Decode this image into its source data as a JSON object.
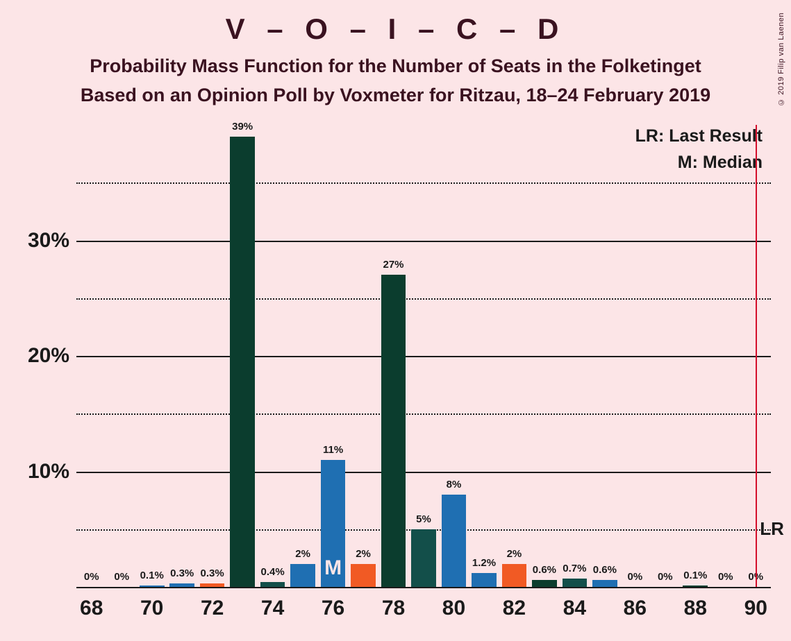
{
  "title_main": "V – O – I – C – D",
  "subtitle1": "Probability Mass Function for the Number of Seats in the Folketinget",
  "subtitle2": "Based on an Opinion Poll by Voxmeter for Ritzau, 18–24 February 2019",
  "copyright": "© 2019 Filip van Laenen",
  "legend_lr": "LR: Last Result",
  "legend_m": "M: Median",
  "lr_marker": "LR",
  "median_marker": "M",
  "chart": {
    "type": "bar",
    "background_color": "#fce5e7",
    "text_color": "#3a1220",
    "axis_color": "#1a1a1a",
    "lr_line_color": "#d40f2c",
    "colors": {
      "dark_green": "#0b3d2e",
      "teal": "#134f4a",
      "blue": "#1f6fb2",
      "orange": "#f15a24"
    },
    "x_min": 67.5,
    "x_max": 90.5,
    "x_ticks": [
      68,
      70,
      72,
      74,
      76,
      78,
      80,
      82,
      84,
      86,
      88,
      90
    ],
    "y_min": 0,
    "y_max": 40,
    "y_ticks_major": [
      0,
      10,
      20,
      30
    ],
    "y_ticks_minor": [
      5,
      15,
      25,
      35
    ],
    "lr_x": 90,
    "median_x": 76,
    "bar_slot_width": 1.0,
    "bars": [
      {
        "x": 68,
        "value": 0,
        "label": "0%",
        "color": "dark_green"
      },
      {
        "x": 69,
        "value": 0,
        "label": "0%",
        "color": "teal"
      },
      {
        "x": 70,
        "value": 0.1,
        "label": "0.1%",
        "color": "blue"
      },
      {
        "x": 71,
        "value": 0.3,
        "label": "0.3%",
        "color": "blue"
      },
      {
        "x": 72,
        "value": 0.3,
        "label": "0.3%",
        "color": "orange"
      },
      {
        "x": 73,
        "value": 39,
        "label": "39%",
        "color": "dark_green"
      },
      {
        "x": 74,
        "value": 0.4,
        "label": "0.4%",
        "color": "teal"
      },
      {
        "x": 75,
        "value": 2,
        "label": "2%",
        "color": "blue"
      },
      {
        "x": 76,
        "value": 11,
        "label": "11%",
        "color": "blue"
      },
      {
        "x": 77,
        "value": 2,
        "label": "2%",
        "color": "orange"
      },
      {
        "x": 78,
        "value": 27,
        "label": "27%",
        "color": "dark_green"
      },
      {
        "x": 79,
        "value": 5,
        "label": "5%",
        "color": "teal"
      },
      {
        "x": 80,
        "value": 8,
        "label": "8%",
        "color": "blue"
      },
      {
        "x": 81,
        "value": 1.2,
        "label": "1.2%",
        "color": "blue"
      },
      {
        "x": 82,
        "value": 2,
        "label": "2%",
        "color": "orange"
      },
      {
        "x": 83,
        "value": 0.6,
        "label": "0.6%",
        "color": "dark_green"
      },
      {
        "x": 84,
        "value": 0.7,
        "label": "0.7%",
        "color": "teal"
      },
      {
        "x": 85,
        "value": 0.6,
        "label": "0.6%",
        "color": "blue"
      },
      {
        "x": 86,
        "value": 0,
        "label": "0%",
        "color": "blue"
      },
      {
        "x": 87,
        "value": 0,
        "label": "0%",
        "color": "orange"
      },
      {
        "x": 88,
        "value": 0.1,
        "label": "0.1%",
        "color": "dark_green"
      },
      {
        "x": 89,
        "value": 0,
        "label": "0%",
        "color": "teal"
      },
      {
        "x": 90,
        "value": 0,
        "label": "0%",
        "color": "blue"
      }
    ]
  }
}
